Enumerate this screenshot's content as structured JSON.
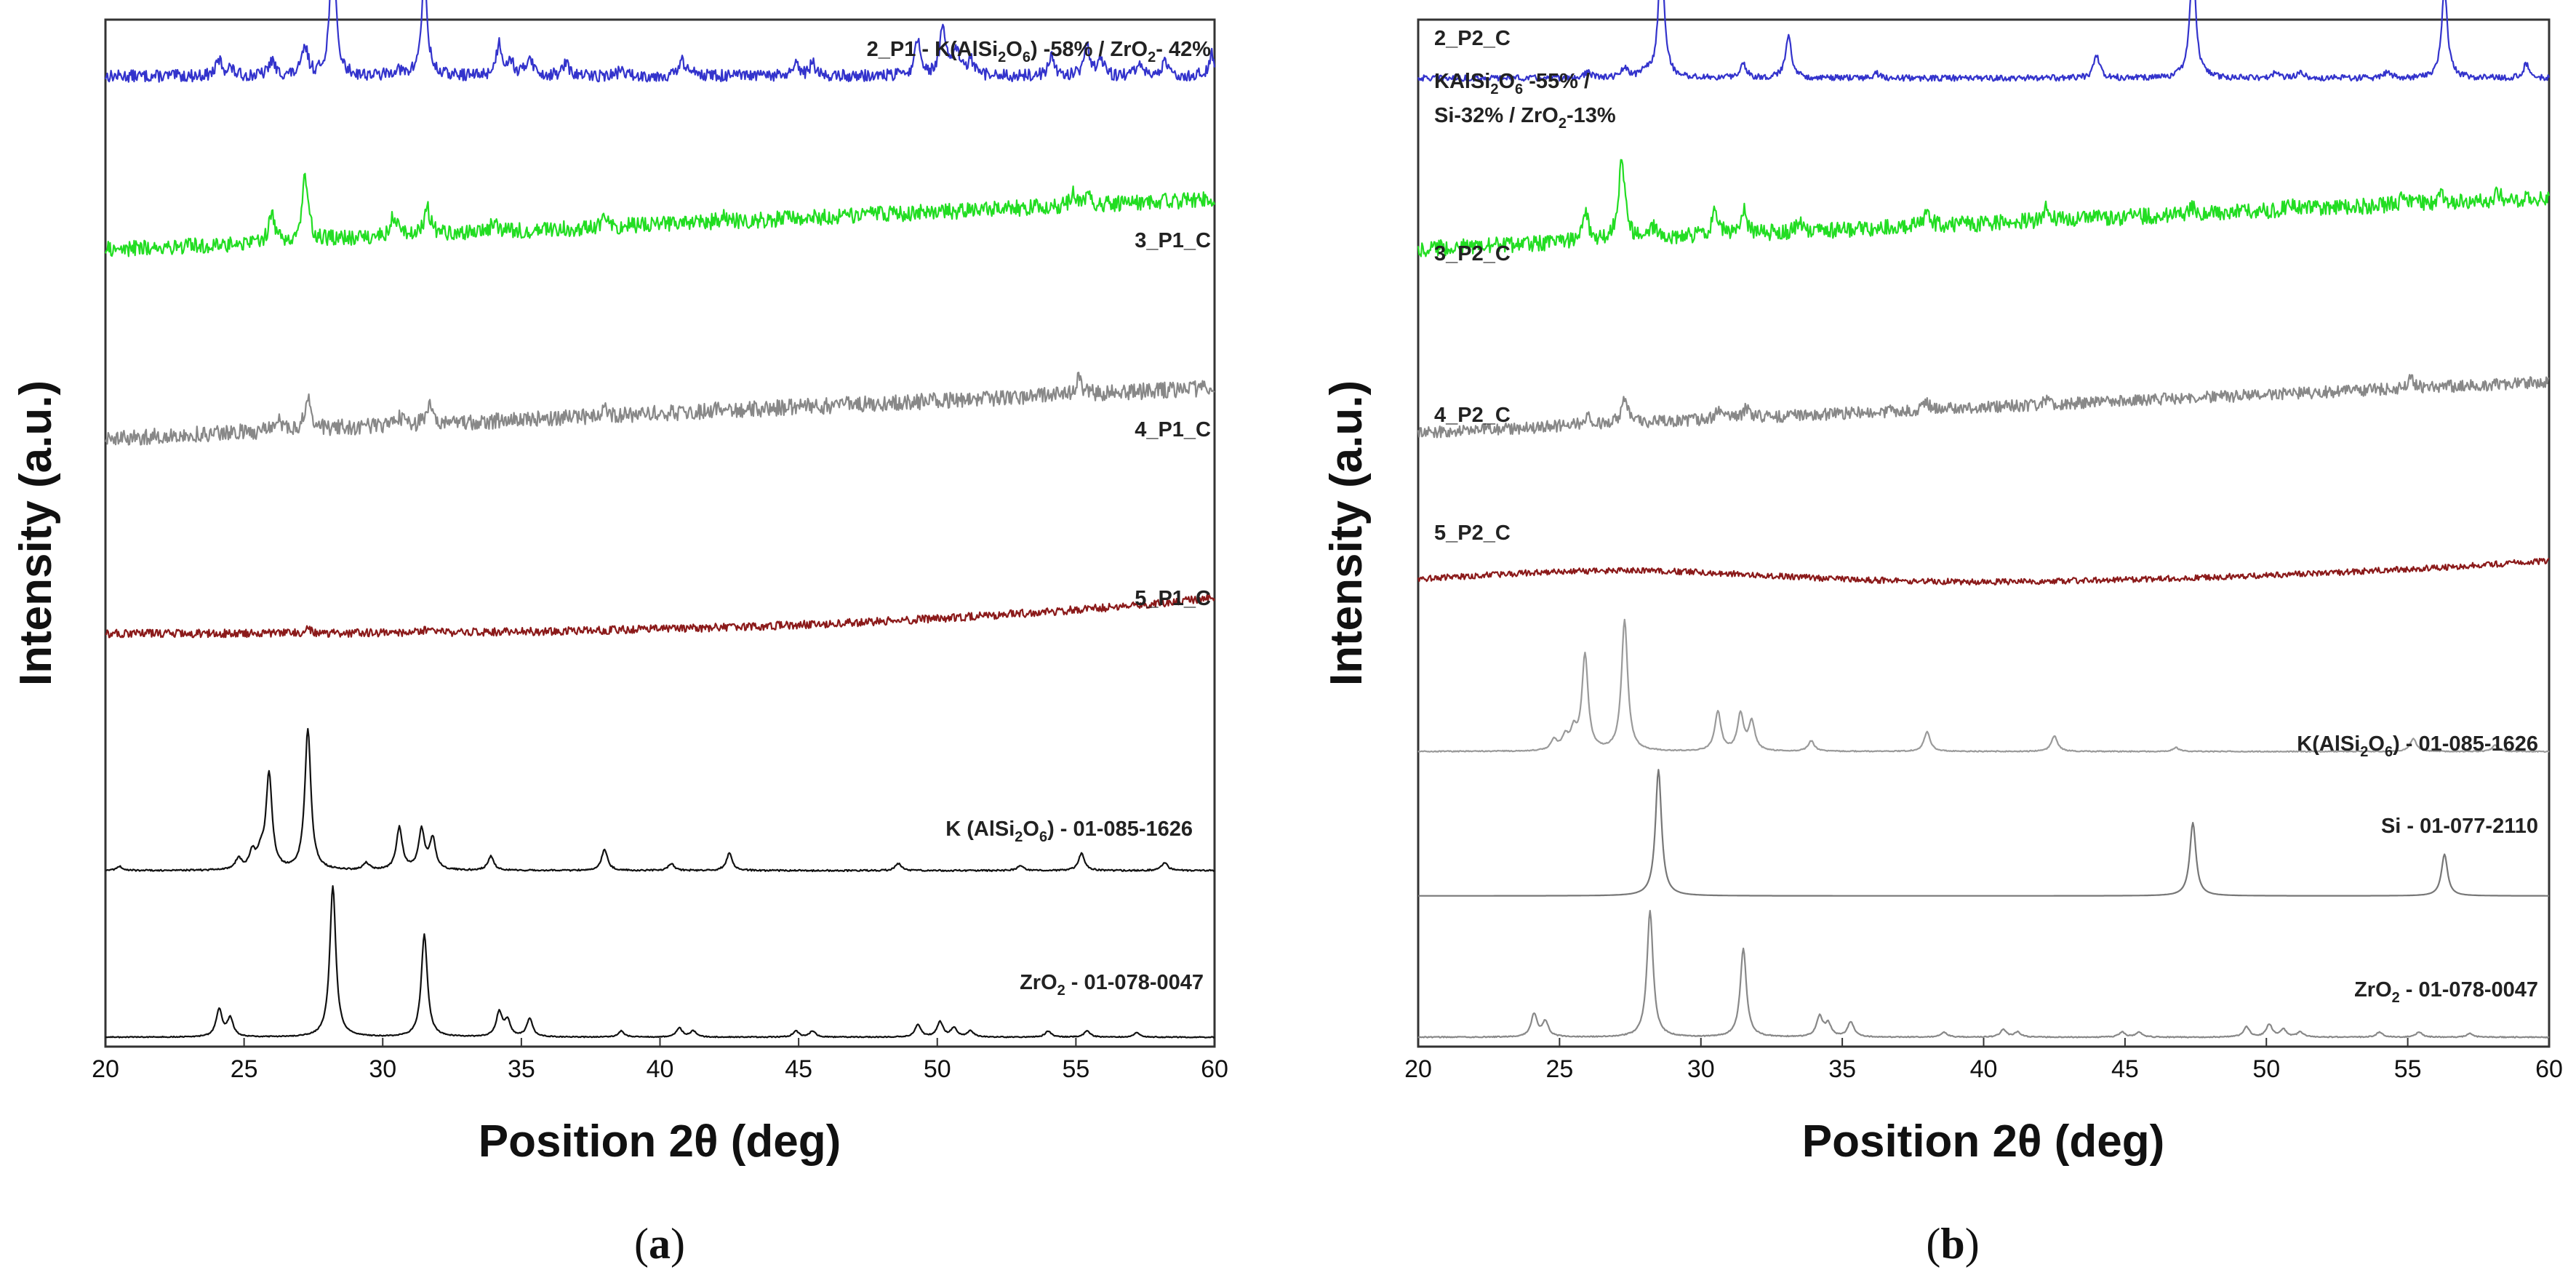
{
  "panels": [
    {
      "id": "a",
      "label": "a",
      "label_open": "(",
      "label_close": ")",
      "ylabel": "Intensity (a.u.)",
      "xlabel": "Position 2θ (deg)"
    },
    {
      "id": "b",
      "label": "b",
      "label_open": "(",
      "label_close": ")",
      "ylabel": "Intensity (a.u.)",
      "xlabel": "Position 2θ (deg)"
    }
  ],
  "chart_data": [
    {
      "type": "line",
      "panel": "a",
      "title": "",
      "xlabel": "Position 2θ (deg)",
      "ylabel": "Intensity (a.u.)",
      "xlim": [
        20,
        60
      ],
      "xticks": [
        20,
        25,
        30,
        35,
        40,
        45,
        50,
        55,
        60
      ],
      "grid": false,
      "series": [
        {
          "name": "2_P1_C",
          "label_lines": [
            [
              {
                "t": "2_P1 - K(AlSi"
              },
              {
                "t": "2",
                "sub": true
              },
              {
                "t": "O"
              },
              {
                "t": "6",
                "sub": true
              },
              {
                "t": ") -58%  / ZrO"
              },
              {
                "t": "2",
                "sub": true
              },
              {
                "t": "- 42%"
              }
            ]
          ],
          "color": "#3333cc",
          "base": 0.957,
          "noise": 0.006,
          "scale": 0.125,
          "peaks": [
            [
              24.1,
              0.12
            ],
            [
              24.5,
              0.06
            ],
            [
              26.0,
              0.12
            ],
            [
              27.2,
              0.22
            ],
            [
              28.2,
              1.0
            ],
            [
              30.5,
              0.05
            ],
            [
              31.5,
              0.75
            ],
            [
              34.2,
              0.25
            ],
            [
              34.6,
              0.12
            ],
            [
              35.3,
              0.16
            ],
            [
              36.6,
              0.1
            ],
            [
              38.6,
              0.05
            ],
            [
              40.8,
              0.12
            ],
            [
              41.3,
              0.05
            ],
            [
              44.9,
              0.08
            ],
            [
              45.5,
              0.1
            ],
            [
              49.3,
              0.28
            ],
            [
              50.2,
              0.38
            ],
            [
              50.7,
              0.2
            ],
            [
              51.2,
              0.12
            ],
            [
              54.1,
              0.15
            ],
            [
              55.4,
              0.25
            ],
            [
              55.9,
              0.12
            ],
            [
              57.3,
              0.1
            ],
            [
              58.2,
              0.1
            ],
            [
              59.9,
              0.18
            ]
          ],
          "peak_values_note": "relative peak heights (normalized to strongest reflection)"
        },
        {
          "name": "3_P1_C",
          "label_lines": [
            [
              {
                "t": "3_P1_C"
              }
            ]
          ],
          "color": "#22dd22",
          "base": 0.785,
          "noise": 0.008,
          "scale": 0.095,
          "slope": 0.05,
          "peaks": [
            [
              26.0,
              0.3
            ],
            [
              27.2,
              0.65
            ],
            [
              30.4,
              0.22
            ],
            [
              31.6,
              0.3
            ],
            [
              34.0,
              0.1
            ],
            [
              38.0,
              0.12
            ],
            [
              42.3,
              0.08
            ],
            [
              54.9,
              0.12
            ],
            [
              55.4,
              0.1
            ]
          ]
        },
        {
          "name": "4_P1_C",
          "label_lines": [
            [
              {
                "t": "4_P1_C"
              }
            ]
          ],
          "color": "#888888",
          "base": 0.598,
          "noise": 0.008,
          "scale": 0.075,
          "slope": 0.05,
          "peaks": [
            [
              26.2,
              0.18
            ],
            [
              27.3,
              0.45
            ],
            [
              30.6,
              0.12
            ],
            [
              31.7,
              0.22
            ],
            [
              38.0,
              0.08
            ],
            [
              42.3,
              0.05
            ],
            [
              55.1,
              0.2
            ]
          ]
        },
        {
          "name": "5_P1_C",
          "label_lines": [
            [
              {
                "t": "5_P1_C"
              }
            ]
          ],
          "color": "#8b1a1a",
          "base": 0.405,
          "noise": 0.004,
          "scale": 0.04,
          "curve": 0.035,
          "peaks": [
            [
              27.3,
              0.1
            ],
            [
              31.5,
              0.06
            ]
          ]
        },
        {
          "name": "K(AlSi2O6) - 01-085-1626",
          "label_lines": [
            [
              {
                "t": "K ("
              },
              {
                "t": "AlSi"
              },
              {
                "t": "2",
                "sub": true
              },
              {
                "t": "O"
              },
              {
                "t": "6",
                "sub": true
              },
              {
                "t": ")  - 01-085-1626"
              }
            ]
          ],
          "color": "#111111",
          "base": 0.17,
          "noise": 0.0008,
          "scale": 0.14,
          "peaks": [
            [
              20.5,
              0.03
            ],
            [
              24.8,
              0.08
            ],
            [
              25.3,
              0.12
            ],
            [
              25.6,
              0.1
            ],
            [
              25.9,
              0.68
            ],
            [
              27.3,
              1.0
            ],
            [
              29.4,
              0.05
            ],
            [
              30.6,
              0.3
            ],
            [
              31.4,
              0.28
            ],
            [
              31.8,
              0.22
            ],
            [
              33.9,
              0.1
            ],
            [
              38.0,
              0.15
            ],
            [
              40.4,
              0.05
            ],
            [
              42.5,
              0.12
            ],
            [
              48.6,
              0.05
            ],
            [
              53.0,
              0.04
            ],
            [
              55.2,
              0.12
            ],
            [
              58.2,
              0.06
            ]
          ]
        },
        {
          "name": "ZrO2 - 01-078-0047",
          "label_lines": [
            [
              {
                "t": "ZrO"
              },
              {
                "t": "2",
                "sub": true
              },
              {
                "t": " - 01-078-0047"
              }
            ]
          ],
          "color": "#111111",
          "base": 0.005,
          "noise": 0.0005,
          "scale": 0.15,
          "peaks": [
            [
              24.1,
              0.18
            ],
            [
              24.5,
              0.12
            ],
            [
              28.2,
              1.0
            ],
            [
              31.5,
              0.68
            ],
            [
              34.2,
              0.16
            ],
            [
              34.5,
              0.1
            ],
            [
              35.3,
              0.12
            ],
            [
              38.6,
              0.04
            ],
            [
              40.7,
              0.06
            ],
            [
              41.2,
              0.04
            ],
            [
              44.9,
              0.04
            ],
            [
              45.5,
              0.04
            ],
            [
              49.3,
              0.08
            ],
            [
              50.1,
              0.1
            ],
            [
              50.6,
              0.06
            ],
            [
              51.2,
              0.04
            ],
            [
              54.0,
              0.04
            ],
            [
              55.4,
              0.04
            ],
            [
              57.2,
              0.03
            ]
          ]
        }
      ]
    },
    {
      "type": "line",
      "panel": "b",
      "title": "",
      "xlabel": "Position 2θ (deg)",
      "ylabel": "Intensity (a.u.)",
      "xlim": [
        20,
        60
      ],
      "xticks": [
        20,
        25,
        30,
        35,
        40,
        45,
        50,
        55,
        60
      ],
      "grid": false,
      "series": [
        {
          "name": "2_P2_C",
          "label_lines": [
            [
              {
                "t": "2_P2_C"
              }
            ],
            [
              {
                "t": "KAlSi"
              },
              {
                "t": "2",
                "sub": true
              },
              {
                "t": "O"
              },
              {
                "t": "6",
                "sub": true
              },
              {
                "t": " -55% /"
              }
            ],
            [
              {
                "t": "Si-32% / ZrO"
              },
              {
                "t": "2",
                "sub": true
              },
              {
                "t": "-13%"
              }
            ]
          ],
          "color": "#3333cc",
          "base": 0.955,
          "noise": 0.003,
          "scale": 0.12,
          "peaks": [
            [
              26.0,
              0.05
            ],
            [
              27.3,
              0.08
            ],
            [
              28.0,
              0.06
            ],
            [
              28.6,
              1.0
            ],
            [
              31.5,
              0.12
            ],
            [
              33.1,
              0.35
            ],
            [
              36.2,
              0.04
            ],
            [
              44.0,
              0.18
            ],
            [
              47.4,
              0.93
            ],
            [
              50.3,
              0.04
            ],
            [
              51.2,
              0.06
            ],
            [
              54.3,
              0.05
            ],
            [
              56.3,
              0.72
            ],
            [
              59.2,
              0.12
            ]
          ]
        },
        {
          "name": "3_P2_C",
          "label_lines": [
            [
              {
                "t": "3_P2_C"
              }
            ]
          ],
          "color": "#22dd22",
          "base": 0.786,
          "noise": 0.008,
          "scale": 0.1,
          "slope": 0.05,
          "peaks": [
            [
              25.9,
              0.32
            ],
            [
              27.2,
              0.82
            ],
            [
              28.3,
              0.1
            ],
            [
              30.5,
              0.25
            ],
            [
              31.5,
              0.25
            ],
            [
              33.5,
              0.08
            ],
            [
              38.0,
              0.14
            ],
            [
              42.2,
              0.12
            ],
            [
              47.4,
              0.06
            ],
            [
              50.8,
              0.06
            ],
            [
              54.9,
              0.12
            ],
            [
              56.2,
              0.08
            ],
            [
              58.2,
              0.08
            ]
          ]
        },
        {
          "name": "4_P2_C",
          "label_lines": [
            [
              {
                "t": "4_P2_C"
              }
            ]
          ],
          "color": "#888888",
          "base": 0.604,
          "noise": 0.006,
          "scale": 0.06,
          "slope": 0.05,
          "peaks": [
            [
              26.0,
              0.18
            ],
            [
              27.3,
              0.42
            ],
            [
              30.6,
              0.14
            ],
            [
              31.6,
              0.16
            ],
            [
              38.0,
              0.1
            ],
            [
              42.2,
              0.06
            ],
            [
              55.1,
              0.15
            ]
          ]
        },
        {
          "name": "5_P2_C",
          "label_lines": [
            [
              {
                "t": "5_P2_C"
              }
            ]
          ],
          "color": "#8b1a1a",
          "base": 0.452,
          "noise": 0.003,
          "scale": 0.04,
          "hump": [
            27,
            0.015
          ],
          "curve": 0.025,
          "peaks": []
        },
        {
          "name": "K(AlSi2O6) - 01-085-1626",
          "label_lines": [
            [
              {
                "t": "K(AlSi"
              },
              {
                "t": "2",
                "sub": true
              },
              {
                "t": "O"
              },
              {
                "t": "6",
                "sub": true
              },
              {
                "t": ") - 01-085-1626"
              }
            ]
          ],
          "color": "#9a9a9a",
          "base": 0.288,
          "noise": 0.0005,
          "scale": 0.13,
          "peaks": [
            [
              24.8,
              0.08
            ],
            [
              25.2,
              0.1
            ],
            [
              25.5,
              0.14
            ],
            [
              25.9,
              0.73
            ],
            [
              27.3,
              1.0
            ],
            [
              30.6,
              0.3
            ],
            [
              31.4,
              0.28
            ],
            [
              31.8,
              0.22
            ],
            [
              33.9,
              0.08
            ],
            [
              38.0,
              0.15
            ],
            [
              42.5,
              0.12
            ],
            [
              46.8,
              0.03
            ],
            [
              55.2,
              0.1
            ],
            [
              58.1,
              0.05
            ]
          ]
        },
        {
          "name": "Si - 01-077-2110",
          "label_lines": [
            [
              {
                "t": "Si - 01-077-2110"
              }
            ]
          ],
          "color": "#777777",
          "base": 0.145,
          "noise": 0.0,
          "scale": 0.125,
          "peaks": [
            [
              28.5,
              1.0
            ],
            [
              47.4,
              0.58
            ],
            [
              56.3,
              0.33
            ]
          ]
        },
        {
          "name": "ZrO2 - 01-078-0047",
          "label_lines": [
            [
              {
                "t": "ZrO"
              },
              {
                "t": "2",
                "sub": true
              },
              {
                "t": " - 01-078-0047"
              }
            ]
          ],
          "color": "#888888",
          "base": 0.005,
          "noise": 0.0005,
          "scale": 0.125,
          "peaks": [
            [
              24.1,
              0.18
            ],
            [
              24.5,
              0.12
            ],
            [
              28.2,
              1.0
            ],
            [
              31.5,
              0.7
            ],
            [
              34.2,
              0.16
            ],
            [
              34.5,
              0.1
            ],
            [
              35.3,
              0.12
            ],
            [
              38.6,
              0.04
            ],
            [
              40.7,
              0.06
            ],
            [
              41.2,
              0.04
            ],
            [
              44.9,
              0.04
            ],
            [
              45.5,
              0.04
            ],
            [
              49.3,
              0.08
            ],
            [
              50.1,
              0.1
            ],
            [
              50.6,
              0.06
            ],
            [
              51.2,
              0.04
            ],
            [
              54.0,
              0.04
            ],
            [
              55.4,
              0.04
            ],
            [
              57.2,
              0.03
            ]
          ]
        }
      ]
    }
  ]
}
